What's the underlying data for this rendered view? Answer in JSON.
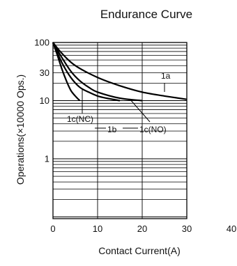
{
  "chart_data": {
    "type": "line",
    "title": "Endurance Curve",
    "xlabel": "Contact Current(A)",
    "ylabel": "Operations(×10000 Ops.)",
    "xlim": [
      0,
      40
    ],
    "ylim": [
      0.1,
      100
    ],
    "yscale": "log",
    "grid": true,
    "legend": "none",
    "x_ticks": [
      0,
      10,
      20,
      30,
      40
    ],
    "y_ticks": [
      100,
      30,
      10,
      1
    ],
    "x_tick_labels": [
      "0",
      "10",
      "20",
      "30",
      "40"
    ],
    "y_tick_labels": [
      "100",
      "30",
      "10",
      "1"
    ],
    "series": [
      {
        "name": "1a",
        "x": [
          0,
          2,
          5,
          10,
          15,
          20,
          25,
          30
        ],
        "y": [
          100,
          65,
          40,
          25,
          18,
          14,
          12,
          10.5
        ]
      },
      {
        "name": "1c(NO)",
        "x": [
          0,
          2,
          4,
          6,
          8,
          10,
          15,
          20
        ],
        "y": [
          100,
          55,
          32,
          22,
          17,
          14,
          11,
          10
        ]
      },
      {
        "name": "1b",
        "x": [
          0,
          2,
          4,
          6,
          8,
          10,
          12,
          15
        ],
        "y": [
          100,
          45,
          25,
          17,
          14,
          12,
          11,
          10
        ]
      },
      {
        "name": "1c(NC)",
        "x": [
          0,
          1,
          2,
          3,
          4,
          5,
          6
        ],
        "y": [
          100,
          60,
          35,
          22,
          15,
          12,
          10
        ]
      }
    ]
  }
}
